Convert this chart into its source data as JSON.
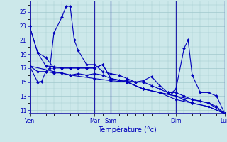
{
  "background_color": "#cce8ea",
  "grid_color": "#a0c8cc",
  "line_color": "#0000bb",
  "marker_color": "#0000bb",
  "xlabel": "Température (°c)",
  "ylim": [
    10.5,
    26.5
  ],
  "yticks": [
    11,
    13,
    15,
    17,
    19,
    21,
    23,
    25
  ],
  "xlim": [
    0,
    288
  ],
  "day_labels": [
    "Ven",
    "Mar",
    "Sam",
    "Dim",
    "Lun"
  ],
  "day_tick_positions": [
    0,
    96,
    120,
    216,
    288
  ],
  "vline_positions": [
    0,
    96,
    120,
    216,
    288
  ],
  "series": [
    {
      "pts": [
        [
          0,
          23
        ],
        [
          12,
          19.2
        ],
        [
          24,
          17.3
        ],
        [
          36,
          17.2
        ],
        [
          48,
          17
        ],
        [
          60,
          17
        ],
        [
          72,
          17
        ],
        [
          84,
          17
        ],
        [
          96,
          17
        ],
        [
          108,
          17.5
        ],
        [
          120,
          15.5
        ],
        [
          132,
          15.3
        ],
        [
          144,
          15.2
        ],
        [
          156,
          15
        ],
        [
          168,
          15
        ],
        [
          180,
          14.5
        ],
        [
          192,
          14
        ],
        [
          204,
          13.5
        ],
        [
          216,
          13.5
        ],
        [
          228,
          13
        ],
        [
          240,
          12.5
        ],
        [
          252,
          12.3
        ],
        [
          264,
          12
        ],
        [
          276,
          11.5
        ],
        [
          288,
          10.5
        ]
      ]
    },
    {
      "pts": [
        [
          0,
          23
        ],
        [
          12,
          19.2
        ],
        [
          24,
          18.5
        ],
        [
          36,
          17
        ],
        [
          48,
          17
        ],
        [
          60,
          17
        ],
        [
          72,
          17
        ],
        [
          84,
          17
        ],
        [
          96,
          17
        ],
        [
          108,
          17.5
        ],
        [
          120,
          15.5
        ],
        [
          144,
          15
        ],
        [
          168,
          14
        ],
        [
          192,
          13.5
        ],
        [
          216,
          13
        ],
        [
          240,
          12.5
        ],
        [
          264,
          12
        ],
        [
          288,
          10.5
        ]
      ]
    },
    {
      "pts": [
        [
          0,
          17.3
        ],
        [
          12,
          15
        ],
        [
          18,
          15.1
        ],
        [
          24,
          16.5
        ],
        [
          30,
          17
        ],
        [
          36,
          22
        ],
        [
          48,
          24.3
        ],
        [
          54,
          25.8
        ],
        [
          60,
          25.8
        ],
        [
          66,
          21
        ],
        [
          72,
          19.5
        ],
        [
          84,
          17.5
        ],
        [
          96,
          17.5
        ],
        [
          108,
          16.5
        ],
        [
          120,
          16.2
        ],
        [
          132,
          16
        ],
        [
          144,
          15.5
        ],
        [
          156,
          15
        ],
        [
          168,
          15.2
        ],
        [
          180,
          15.8
        ],
        [
          192,
          14.5
        ],
        [
          204,
          13.5
        ],
        [
          210,
          13.5
        ],
        [
          216,
          14
        ],
        [
          228,
          19.8
        ],
        [
          234,
          21
        ],
        [
          240,
          16
        ],
        [
          252,
          13.5
        ],
        [
          264,
          13.5
        ],
        [
          276,
          13
        ],
        [
          288,
          10.5
        ]
      ]
    },
    {
      "pts": [
        [
          0,
          17.3
        ],
        [
          12,
          16.5
        ],
        [
          24,
          16.5
        ],
        [
          36,
          16.3
        ],
        [
          48,
          16.3
        ],
        [
          60,
          16
        ],
        [
          72,
          16.2
        ],
        [
          84,
          16
        ],
        [
          96,
          16.2
        ],
        [
          108,
          16
        ],
        [
          120,
          15.5
        ],
        [
          144,
          15
        ],
        [
          168,
          14
        ],
        [
          192,
          13.5
        ],
        [
          216,
          13
        ],
        [
          228,
          12.5
        ],
        [
          240,
          12
        ],
        [
          264,
          11.5
        ],
        [
          288,
          10.5
        ]
      ]
    },
    {
      "pts": [
        [
          0,
          17.3
        ],
        [
          36,
          16.5
        ],
        [
          60,
          16
        ],
        [
          96,
          15.5
        ],
        [
          120,
          15.2
        ],
        [
          144,
          15
        ],
        [
          168,
          14
        ],
        [
          192,
          13.5
        ],
        [
          216,
          12.5
        ],
        [
          240,
          12
        ],
        [
          264,
          11.5
        ],
        [
          288,
          10.5
        ]
      ]
    }
  ]
}
